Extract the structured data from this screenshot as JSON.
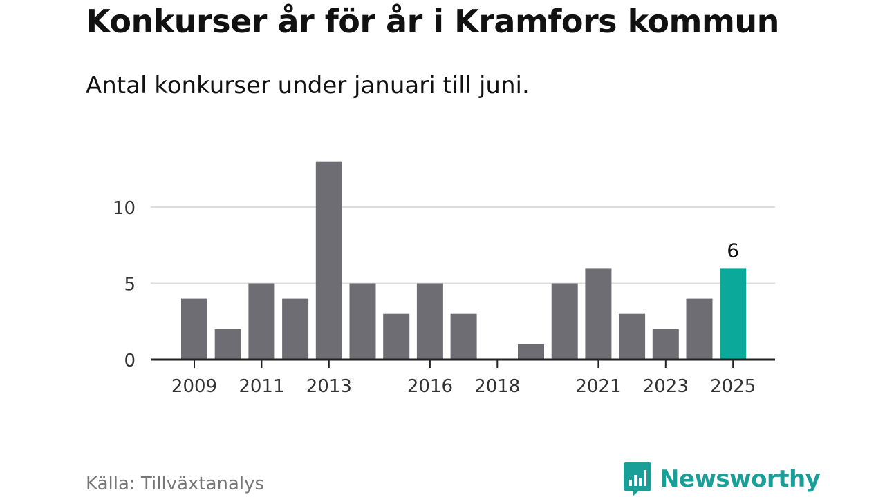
{
  "title": "Konkurser år för år i Kramfors kommun",
  "subtitle": "Antal konkurser under januari till juni.",
  "source": "Källa: Tillväxtanalys",
  "brand": {
    "name": "Newsworthy",
    "color": "#1a9e98",
    "icon": "bar-chart-speech-bubble-icon"
  },
  "colors": {
    "bar": "#6e6d73",
    "highlight": "#0aa99a",
    "grid": "#dddddd",
    "axis": "#222222",
    "tick_text": "#333333"
  },
  "chart_data": {
    "type": "bar",
    "title": "Konkurser år för år i Kramfors kommun",
    "subtitle": "Antal konkurser under januari till juni.",
    "categories": [
      "2009",
      "2010",
      "2011",
      "2012",
      "2013",
      "2014",
      "2015",
      "2016",
      "2017",
      "2018",
      "2019",
      "2020",
      "2021",
      "2022",
      "2023",
      "2024",
      "2025"
    ],
    "values": [
      4,
      2,
      5,
      4,
      13,
      5,
      3,
      5,
      3,
      0,
      1,
      5,
      6,
      3,
      2,
      4,
      6
    ],
    "x_tick_labels": [
      "2009",
      "2011",
      "2013",
      "2016",
      "2018",
      "2021",
      "2023",
      "2025"
    ],
    "y_ticks": [
      0,
      5,
      10
    ],
    "ylim": [
      0,
      13
    ],
    "highlight": {
      "category": "2025",
      "label": "6"
    },
    "grid": true,
    "xlabel": "",
    "ylabel": ""
  }
}
